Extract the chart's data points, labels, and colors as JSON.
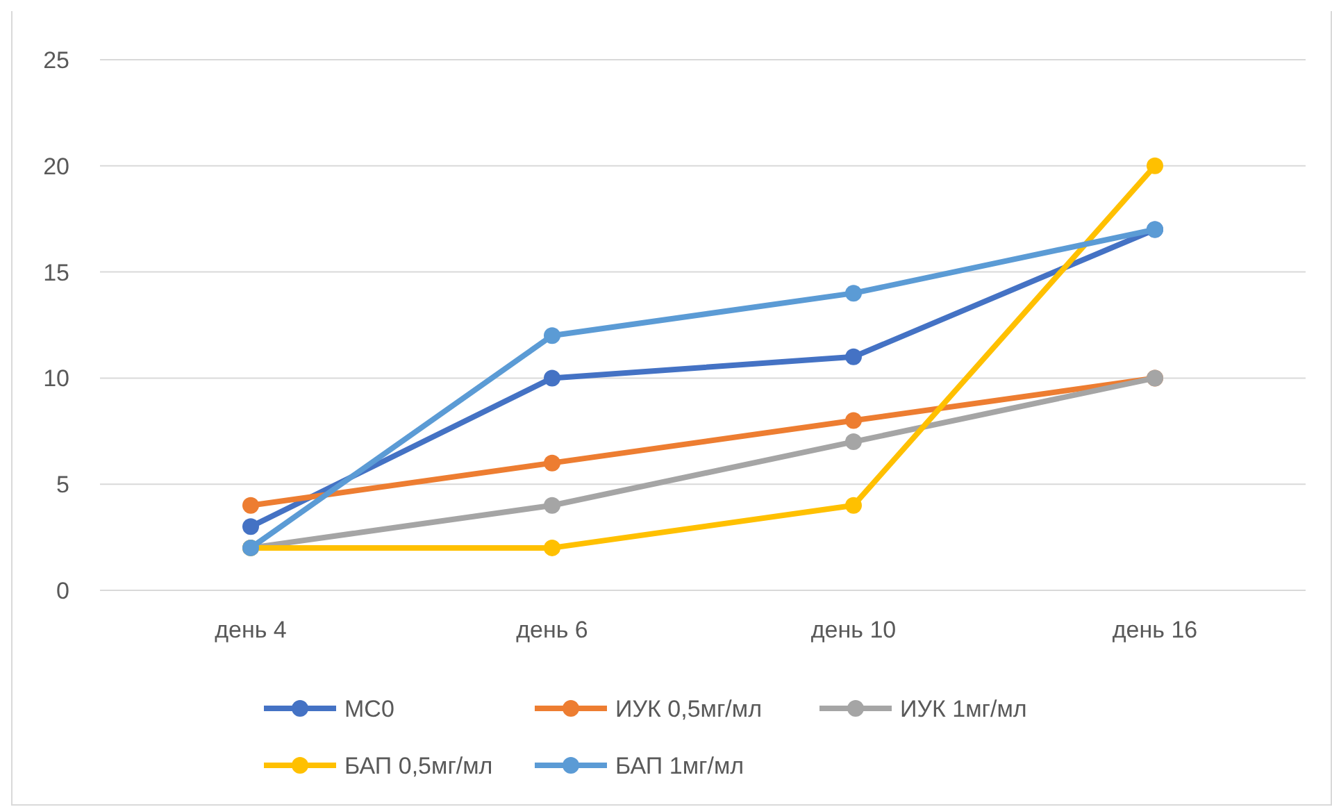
{
  "chart_data": {
    "type": "line",
    "categories": [
      "день 4",
      "день 6",
      "день 10",
      "день 16"
    ],
    "series": [
      {
        "name": "МС0",
        "color": "#4472c4",
        "values": [
          3,
          10,
          11,
          17
        ]
      },
      {
        "name": "ИУК 0,5мг/мл",
        "color": "#ed7d31",
        "values": [
          4,
          6,
          8,
          10
        ]
      },
      {
        "name": "ИУК 1мг/мл",
        "color": "#a5a5a5",
        "values": [
          2,
          4,
          7,
          10
        ]
      },
      {
        "name": "БАП 0,5мг/мл",
        "color": "#ffc000",
        "values": [
          2,
          2,
          4,
          20
        ]
      },
      {
        "name": "БАП 1мг/мл",
        "color": "#5b9bd5",
        "values": [
          2,
          12,
          14,
          17
        ]
      }
    ],
    "ylim": [
      0,
      25
    ],
    "yticks": [
      0,
      5,
      10,
      15,
      20,
      25
    ],
    "grid": "y",
    "legend": "bottom",
    "marker": "circle",
    "line_style": "solid"
  }
}
